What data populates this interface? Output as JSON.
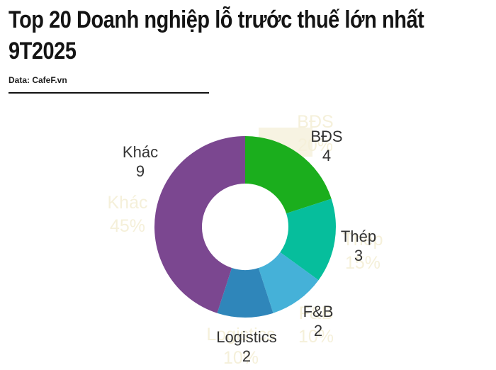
{
  "header": {
    "title_line1": "Top 20 Doanh nghiệp lỗ trước thuế lớn nhất",
    "title_line2": "9T2025",
    "source": "Data: CafeF.vn"
  },
  "chart_data": {
    "type": "pie",
    "donut": true,
    "title": "Top 20 Doanh nghiệp lỗ trước thuế lớn nhất 9T2025",
    "total": 20,
    "start_angle_deg": 0,
    "direction": "clockwise",
    "legend_position": "none",
    "segments": [
      {
        "label": "BĐS",
        "value": 4,
        "percent": "20%",
        "color": "#1bae1d"
      },
      {
        "label": "Thép",
        "value": 3,
        "percent": "15%",
        "color": "#06be9c"
      },
      {
        "label": "F&B",
        "value": 2,
        "percent": "10%",
        "color": "#45b1d8"
      },
      {
        "label": "Logistics",
        "value": 2,
        "percent": "10%",
        "color": "#2f86ba"
      },
      {
        "label": "Khác",
        "value": 9,
        "percent": "45%",
        "color": "#7b4790"
      }
    ],
    "ghost_watermark_labels": [
      "BĐS 20%",
      "Thép 15%",
      "F&B 10%",
      "Logistics 10%",
      "Khác 45%"
    ],
    "background": "#ffffff"
  }
}
